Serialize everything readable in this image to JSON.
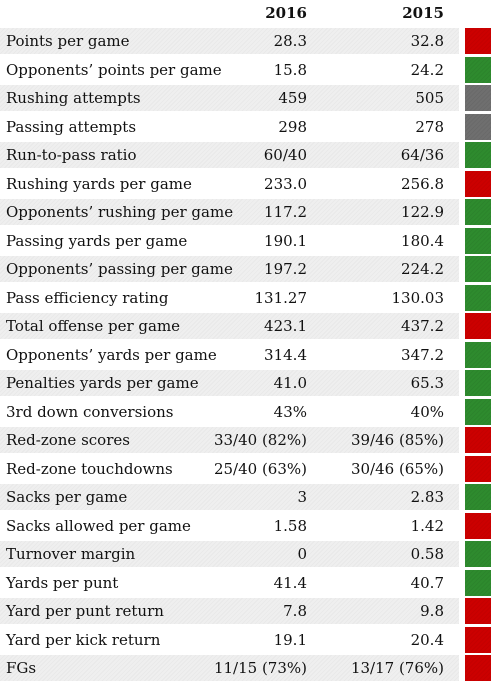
{
  "header": {
    "col_2016": "2016",
    "col_2015": "2015"
  },
  "colors": {
    "red": "#cc0000",
    "green": "#2e8b2e",
    "gray": "#6f6f6f"
  },
  "rows": [
    {
      "label": "Points per game",
      "v2016": "28.3",
      "v2015": "32.8",
      "indicator": "red"
    },
    {
      "label": "Opponents’ points per game",
      "v2016": "15.8",
      "v2015": "24.2",
      "indicator": "green"
    },
    {
      "label": "Rushing attempts",
      "v2016": "459",
      "v2015": "505",
      "indicator": "gray"
    },
    {
      "label": "Passing attempts",
      "v2016": "298",
      "v2015": "278",
      "indicator": "gray"
    },
    {
      "label": "Run-to-pass ratio",
      "v2016": "60/40",
      "v2015": "64/36",
      "indicator": "green"
    },
    {
      "label": "Rushing yards per game",
      "v2016": "233.0",
      "v2015": "256.8",
      "indicator": "red"
    },
    {
      "label": "Opponents’ rushing per game",
      "v2016": "117.2",
      "v2015": "122.9",
      "indicator": "green"
    },
    {
      "label": "Passing yards per game",
      "v2016": "190.1",
      "v2015": "180.4",
      "indicator": "green"
    },
    {
      "label": "Opponents’ passing per game",
      "v2016": "197.2",
      "v2015": "224.2",
      "indicator": "green"
    },
    {
      "label": "Pass efficiency rating",
      "v2016": "131.27",
      "v2015": "130.03",
      "indicator": "green"
    },
    {
      "label": "Total offense per game",
      "v2016": "423.1",
      "v2015": "437.2",
      "indicator": "red"
    },
    {
      "label": "Opponents’ yards per game",
      "v2016": "314.4",
      "v2015": "347.2",
      "indicator": "green"
    },
    {
      "label": "Penalties yards per game",
      "v2016": "41.0",
      "v2015": "65.3",
      "indicator": "green"
    },
    {
      "label": "3rd down conversions",
      "v2016": "43%",
      "v2015": "40%",
      "indicator": "green"
    },
    {
      "label": "Red-zone scores",
      "v2016": "33/40 (82%)",
      "v2015": "39/46 (85%)",
      "indicator": "red"
    },
    {
      "label": "Red-zone touchdowns",
      "v2016": "25/40 (63%)",
      "v2015": "30/46 (65%)",
      "indicator": "red"
    },
    {
      "label": "Sacks per game",
      "v2016": "3",
      "v2015": "2.83",
      "indicator": "green"
    },
    {
      "label": "Sacks allowed per game",
      "v2016": "1.58",
      "v2015": "1.42",
      "indicator": "red"
    },
    {
      "label": "Turnover margin",
      "v2016": "0",
      "v2015": "0.58",
      "indicator": "green"
    },
    {
      "label": "Yards per punt",
      "v2016": "41.4",
      "v2015": "40.7",
      "indicator": "green"
    },
    {
      "label": "Yard per punt return",
      "v2016": "7.8",
      "v2015": "9.8",
      "indicator": "red"
    },
    {
      "label": "Yard per kick return",
      "v2016": "19.1",
      "v2015": "20.4",
      "indicator": "red"
    },
    {
      "label": "FGs",
      "v2016": "11/15 (73%)",
      "v2015": "13/17 (76%)",
      "indicator": "red"
    }
  ]
}
